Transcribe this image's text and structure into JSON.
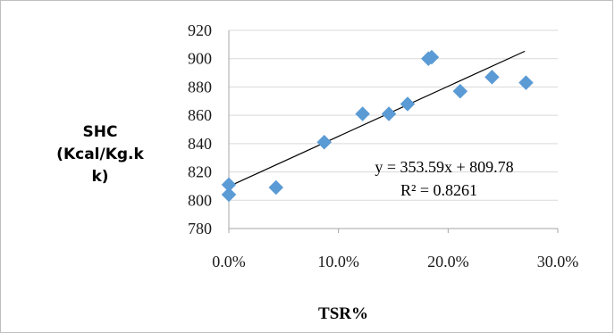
{
  "chart_data": {
    "type": "scatter",
    "title": "",
    "xlabel": "TSR%",
    "ylabel": [
      "SHC",
      "(Kcal/Kg.k",
      "k)"
    ],
    "xlim": [
      0,
      0.3
    ],
    "ylim": [
      780,
      920
    ],
    "x_ticks": [
      0,
      0.1,
      0.2,
      0.3
    ],
    "x_tick_labels": [
      "0.0%",
      "10.0%",
      "20.0%",
      "30.0%"
    ],
    "y_ticks": [
      780,
      800,
      820,
      840,
      860,
      880,
      900,
      920
    ],
    "y_tick_labels": [
      "780",
      "800",
      "820",
      "840",
      "860",
      "880",
      "900",
      "920"
    ],
    "grid": "horizontal",
    "series": [
      {
        "color": "#5b9bd5",
        "x": [
          0,
          0,
          0.043,
          0.087,
          0.122,
          0.146,
          0.163,
          0.182,
          0.185,
          0.211,
          0.24,
          0.271
        ],
        "y": [
          811,
          804,
          809,
          841,
          861,
          861,
          868,
          900,
          901,
          877,
          887,
          883
        ]
      }
    ],
    "trendline": {
      "slope": 353.59,
      "intercept": 809.78,
      "x_range": [
        0,
        0.27
      ],
      "equation": "y = 353.59x + 809.78",
      "r2": "R² = 0.8261"
    }
  }
}
